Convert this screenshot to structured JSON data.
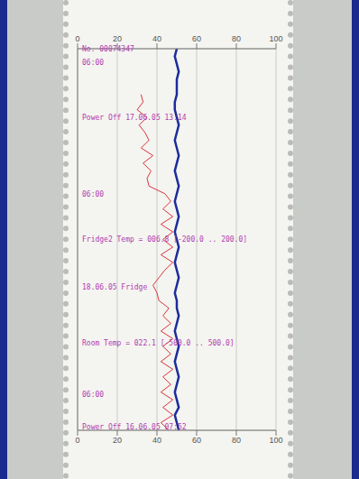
{
  "chart_data": {
    "type": "line",
    "orientation": "horizontal",
    "grid": true,
    "tick_labels": "y",
    "x": [
      0,
      2,
      4,
      6,
      8,
      10,
      12,
      14,
      16,
      18,
      20,
      22,
      24,
      26,
      28,
      30,
      32,
      34,
      36,
      38,
      40,
      42,
      44,
      46,
      48,
      50,
      52,
      54,
      56,
      58,
      60,
      62,
      64,
      66,
      68,
      70,
      72,
      74,
      76,
      78,
      80,
      82,
      84,
      86,
      88,
      90,
      92,
      94,
      96,
      98,
      100
    ],
    "xlim": [
      0,
      100
    ],
    "xticks": [
      0,
      5,
      10,
      15,
      20,
      25,
      30,
      35,
      40,
      45,
      50,
      55,
      60,
      65,
      70,
      75,
      80,
      85,
      90,
      95,
      100
    ],
    "ylim": [
      0,
      100
    ],
    "yticks": [
      0,
      20,
      40,
      60,
      80,
      100
    ],
    "series": [
      {
        "name": "Room Temp",
        "color": "#d8343c",
        "values": [
          46,
          42,
          48,
          43,
          48,
          42,
          47,
          43,
          48,
          42,
          47,
          43,
          48,
          42,
          47,
          43,
          46,
          41,
          40,
          38,
          41,
          44,
          48,
          42,
          48,
          43,
          48,
          42,
          48,
          43,
          47,
          44,
          36,
          35,
          37,
          33,
          38,
          32,
          36,
          34,
          31,
          35,
          30,
          33,
          32,
          null,
          null,
          null,
          null,
          null,
          null
        ]
      },
      {
        "name": "Fridge2 Temp",
        "color": "#1c2c9c",
        "values": [
          51,
          50,
          49,
          51,
          50,
          49,
          50,
          51,
          50,
          49,
          50,
          51,
          50,
          49,
          50,
          51,
          50,
          50,
          49,
          50,
          51,
          50,
          49,
          50,
          51,
          50,
          49,
          50,
          51,
          50,
          49,
          50,
          51,
          50,
          49,
          50,
          51,
          50,
          49,
          50,
          51,
          50,
          49,
          49,
          50,
          null,
          50,
          51,
          50,
          49,
          50
        ]
      }
    ],
    "annotations": [
      {
        "x": 1,
        "text": "Power Off 16.06.05 07:52"
      },
      {
        "x": 9.5,
        "text": "06:00"
      },
      {
        "x": 23,
        "text": "Room Temp = 022.1 [-500.0 .. 500.0]"
      },
      {
        "x": 37.5,
        "text": "18.06.05 Fridge"
      },
      {
        "x": 50,
        "text": "Fridge2 Temp = 006.8 [-200.0 .. 200.0]"
      },
      {
        "x": 62,
        "text": "06:00"
      },
      {
        "x": 82,
        "text": "Power Off 17.06.05 13:14"
      },
      {
        "x": 96.5,
        "text": "06:00"
      },
      {
        "x": 100,
        "text": "No. 00074347"
      }
    ]
  }
}
